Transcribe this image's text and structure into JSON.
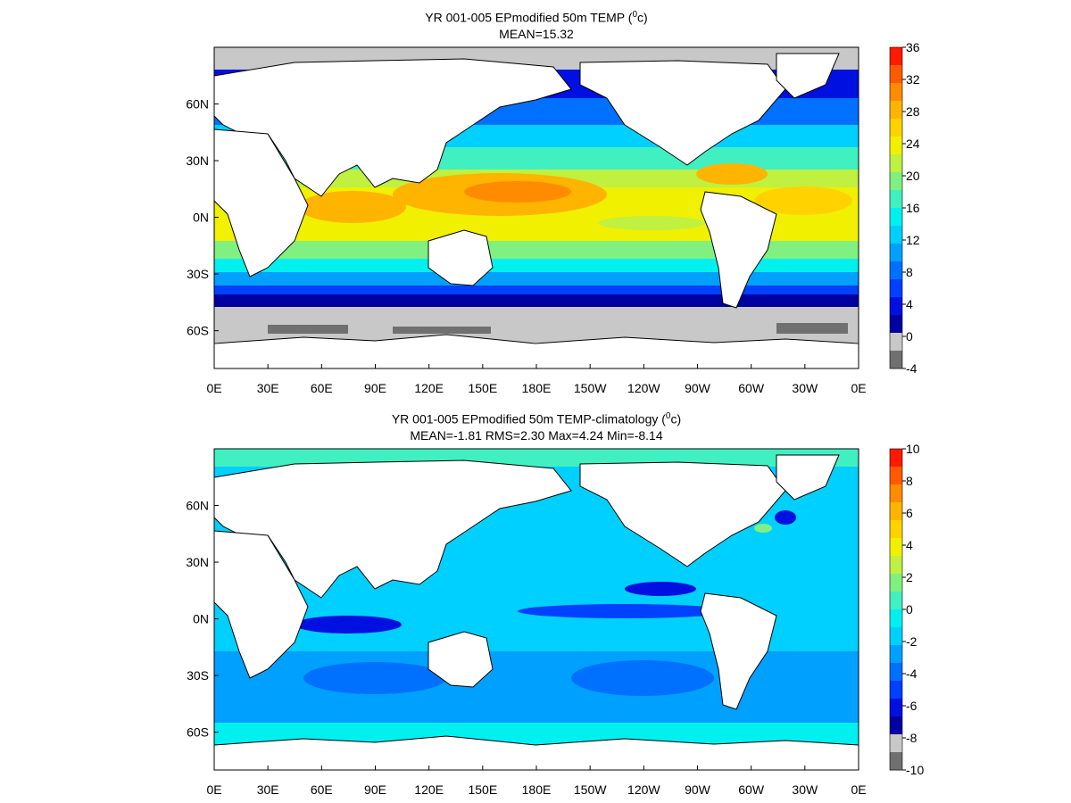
{
  "panels": [
    {
      "title_prefix": "YR 001-005 EPmodified 50m TEMP (",
      "title_unit_sup": "0",
      "title_unit_after": "c)",
      "subtitle": "MEAN=15.32",
      "colorbar": {
        "tick_labels": [
          "36",
          "32",
          "28",
          "24",
          "20",
          "16",
          "12",
          "8",
          "4",
          "0",
          "-4"
        ],
        "colors": [
          "#ff1a00",
          "#ff5a00",
          "#ff8c00",
          "#ffb400",
          "#ffd200",
          "#f0f000",
          "#c0f040",
          "#80f080",
          "#40f0c0",
          "#00f0f0",
          "#00d0ff",
          "#00a0ff",
          "#0070ff",
          "#0040ff",
          "#0010e0",
          "#0000a0",
          "#c8c8c8",
          "#707070"
        ]
      }
    },
    {
      "title_prefix": "YR 001-005 EPmodified 50m TEMP-climatology (",
      "title_unit_sup": "0",
      "title_unit_after": "c)",
      "subtitle": "MEAN=-1.81   RMS=2.30   Max=4.24   Min=-8.14",
      "colorbar": {
        "tick_labels": [
          "10",
          "8",
          "6",
          "4",
          "2",
          "0",
          "-2",
          "-4",
          "-6",
          "-8",
          "-10"
        ],
        "colors": [
          "#ff1a00",
          "#ff5a00",
          "#ff8c00",
          "#ffb400",
          "#ffd200",
          "#f0f000",
          "#c0f040",
          "#80f080",
          "#40f0c0",
          "#00f0f0",
          "#00d0ff",
          "#00a0ff",
          "#0070ff",
          "#0040ff",
          "#0010e0",
          "#0000a0",
          "#c8c8c8",
          "#707070"
        ]
      }
    }
  ],
  "axes": {
    "lon_labels": [
      "0E",
      "30E",
      "60E",
      "90E",
      "120E",
      "150E",
      "180E",
      "150W",
      "120W",
      "90W",
      "60W",
      "30W",
      "0E"
    ],
    "lat_labels": [
      "60N",
      "30N",
      "0N",
      "30S",
      "60S"
    ],
    "lat_values": [
      60,
      30,
      0,
      -30,
      -60
    ],
    "lon_range": [
      0,
      360
    ],
    "lat_range": [
      -80,
      90
    ]
  }
}
